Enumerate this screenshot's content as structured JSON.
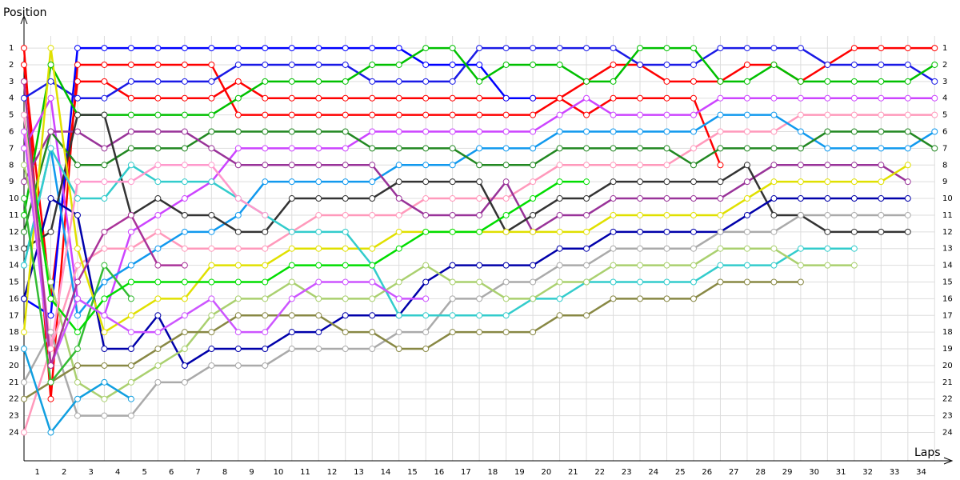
{
  "chart_data": {
    "type": "line",
    "y_label": "Position",
    "x_label": "Laps",
    "x": [
      0,
      1,
      2,
      3,
      4,
      5,
      6,
      7,
      8,
      9,
      10,
      11,
      12,
      13,
      14,
      15,
      16,
      17,
      18,
      19,
      20,
      21,
      22,
      23,
      24,
      25,
      26,
      27,
      28,
      29,
      30,
      31,
      32,
      33,
      34
    ],
    "xlim": [
      0,
      34.35
    ],
    "xticks": [
      1,
      2,
      3,
      4,
      5,
      6,
      7,
      8,
      9,
      10,
      11,
      12,
      13,
      14,
      15,
      16,
      17,
      18,
      19,
      20,
      21,
      22,
      23,
      24,
      25,
      26,
      27,
      28,
      29,
      30,
      31,
      32,
      33,
      34
    ],
    "ylim": [
      25.7,
      -0.2
    ],
    "yticks": [
      1,
      2,
      3,
      4,
      5,
      6,
      7,
      8,
      9,
      10,
      11,
      12,
      13,
      14,
      15,
      16,
      17,
      18,
      19,
      20,
      21,
      22,
      23,
      24
    ],
    "grid": true,
    "series": [
      {
        "color": "#ff0000",
        "values": [
          2,
          16,
          3,
          3,
          4,
          4,
          4,
          4,
          3,
          4,
          4,
          4,
          4,
          4,
          4,
          4,
          4,
          4,
          4,
          4,
          4,
          3,
          2,
          2,
          3,
          3,
          3,
          2,
          2,
          3,
          2,
          1,
          1,
          1,
          1
        ]
      },
      {
        "color": "#ff0000",
        "values": [
          1,
          22,
          2,
          2,
          2,
          2,
          2,
          2,
          5,
          5,
          5,
          5,
          5,
          5,
          5,
          5,
          5,
          5,
          5,
          5,
          4,
          5,
          4,
          4,
          4,
          4,
          8,
          null,
          null,
          null,
          null,
          null,
          null,
          null,
          null
        ]
      },
      {
        "color": "#0000ff",
        "values": [
          16,
          17,
          1,
          1,
          1,
          1,
          1,
          1,
          1,
          1,
          1,
          1,
          1,
          1,
          1,
          2,
          2,
          2,
          4,
          4,
          null,
          null,
          null,
          null,
          null,
          null,
          null,
          null,
          null,
          null,
          null,
          null,
          null,
          null,
          null
        ]
      },
      {
        "color": "#1a1ae6",
        "values": [
          4,
          3,
          4,
          4,
          3,
          3,
          3,
          3,
          2,
          2,
          2,
          2,
          2,
          3,
          3,
          3,
          3,
          1,
          1,
          1,
          1,
          1,
          1,
          2,
          2,
          2,
          1,
          1,
          1,
          1,
          2,
          2,
          2,
          2,
          3
        ]
      },
      {
        "color": "#00c000",
        "values": [
          11,
          2,
          5,
          5,
          5,
          5,
          5,
          5,
          4,
          3,
          3,
          3,
          3,
          2,
          2,
          1,
          1,
          3,
          2,
          2,
          2,
          3,
          3,
          1,
          1,
          1,
          3,
          3,
          2,
          3,
          3,
          3,
          3,
          3,
          2
        ]
      },
      {
        "color": "#cc44ff",
        "values": [
          7,
          4,
          16,
          17,
          12,
          11,
          10,
          9,
          7,
          7,
          7,
          7,
          7,
          6,
          6,
          6,
          6,
          6,
          6,
          6,
          5,
          4,
          5,
          5,
          5,
          5,
          4,
          4,
          4,
          4,
          4,
          4,
          4,
          4,
          4
        ]
      },
      {
        "color": "#ff99bb",
        "values": [
          24,
          19,
          14,
          13,
          13,
          12,
          13,
          13,
          13,
          13,
          12,
          11,
          11,
          11,
          11,
          10,
          10,
          10,
          10,
          9,
          8,
          8,
          8,
          8,
          8,
          7,
          6,
          6,
          6,
          5,
          5,
          5,
          5,
          5,
          5
        ]
      },
      {
        "color": "#1199ee",
        "values": [
          14,
          7,
          17,
          15,
          14,
          13,
          12,
          12,
          11,
          9,
          9,
          9,
          9,
          9,
          8,
          8,
          8,
          7,
          7,
          7,
          6,
          6,
          6,
          6,
          6,
          6,
          5,
          5,
          5,
          6,
          7,
          7,
          7,
          7,
          6
        ]
      },
      {
        "color": "#228822",
        "values": [
          12,
          6,
          8,
          8,
          7,
          7,
          7,
          6,
          6,
          6,
          6,
          6,
          6,
          7,
          7,
          7,
          7,
          8,
          8,
          8,
          7,
          7,
          7,
          7,
          7,
          8,
          7,
          7,
          7,
          7,
          6,
          6,
          6,
          6,
          7
        ]
      },
      {
        "color": "#993399",
        "values": [
          9,
          6,
          6,
          7,
          6,
          6,
          6,
          7,
          8,
          8,
          8,
          8,
          8,
          8,
          10,
          11,
          11,
          11,
          9,
          12,
          11,
          11,
          10,
          10,
          10,
          10,
          10,
          9,
          8,
          8,
          8,
          8,
          8,
          9,
          null
        ]
      },
      {
        "color": "#333333",
        "values": [
          13,
          12,
          5,
          5,
          11,
          10,
          11,
          11,
          12,
          12,
          10,
          10,
          10,
          10,
          9,
          9,
          9,
          9,
          12,
          11,
          10,
          10,
          9,
          9,
          9,
          9,
          9,
          8,
          11,
          11,
          12,
          12,
          12,
          12,
          null
        ]
      },
      {
        "color": "#0000aa",
        "values": [
          16,
          10,
          11,
          19,
          19,
          17,
          20,
          19,
          19,
          19,
          18,
          18,
          17,
          17,
          17,
          15,
          14,
          14,
          14,
          14,
          13,
          13,
          12,
          12,
          12,
          12,
          12,
          11,
          10,
          10,
          10,
          10,
          10,
          10,
          null
        ]
      },
      {
        "color": "#e0e000",
        "values": [
          18,
          1,
          13,
          18,
          17,
          16,
          16,
          14,
          14,
          14,
          13,
          13,
          13,
          13,
          12,
          12,
          12,
          12,
          12,
          12,
          12,
          12,
          11,
          11,
          11,
          11,
          11,
          10,
          9,
          9,
          9,
          9,
          9,
          8,
          null
        ]
      },
      {
        "color": "#aaaaaa",
        "values": [
          21,
          18,
          23,
          23,
          23,
          21,
          21,
          20,
          20,
          20,
          19,
          19,
          19,
          19,
          18,
          18,
          16,
          16,
          15,
          15,
          14,
          14,
          13,
          13,
          13,
          13,
          12,
          12,
          12,
          11,
          11,
          11,
          11,
          11,
          null
        ]
      },
      {
        "color": "#33cccc",
        "values": [
          14,
          7,
          10,
          10,
          8,
          9,
          9,
          9,
          10,
          11,
          12,
          12,
          12,
          14,
          17,
          17,
          17,
          17,
          17,
          16,
          16,
          15,
          15,
          15,
          15,
          15,
          14,
          14,
          14,
          13,
          13,
          13,
          null,
          null,
          null
        ]
      },
      {
        "color": "#aad06f",
        "values": [
          8,
          15,
          21,
          22,
          21,
          20,
          19,
          17,
          16,
          16,
          15,
          16,
          16,
          16,
          15,
          14,
          15,
          15,
          16,
          16,
          15,
          15,
          14,
          14,
          14,
          14,
          13,
          13,
          13,
          14,
          14,
          14,
          null,
          null,
          null
        ]
      },
      {
        "color": "#888844",
        "values": [
          22,
          21,
          20,
          20,
          20,
          19,
          18,
          18,
          17,
          17,
          17,
          17,
          18,
          18,
          19,
          19,
          18,
          18,
          18,
          18,
          17,
          17,
          16,
          16,
          16,
          16,
          15,
          15,
          15,
          15,
          null,
          null,
          null,
          null,
          null
        ]
      },
      {
        "color": "#119fe0",
        "values": [
          19,
          24,
          22,
          21,
          22,
          null,
          null,
          null,
          null,
          null,
          null,
          null,
          null,
          null,
          null,
          null,
          null,
          null,
          null,
          null,
          null,
          null,
          null,
          null,
          null,
          null,
          null,
          null,
          null,
          null,
          null,
          null,
          null,
          null,
          null
        ]
      },
      {
        "color": "#33bb33",
        "values": [
          10,
          21,
          19,
          14,
          16,
          null,
          null,
          null,
          null,
          null,
          null,
          null,
          null,
          null,
          null,
          null,
          null,
          null,
          null,
          null,
          null,
          null,
          null,
          null,
          null,
          null,
          null,
          null,
          null,
          null,
          null,
          null,
          null,
          null,
          null
        ]
      },
      {
        "color": "#00dd00",
        "values": [
          5,
          16,
          18,
          16,
          15,
          15,
          15,
          15,
          15,
          15,
          14,
          14,
          14,
          14,
          13,
          12,
          12,
          12,
          11,
          10,
          9,
          9,
          null,
          null,
          null,
          null,
          null,
          null,
          null,
          null,
          null,
          null,
          null,
          null,
          null
        ]
      },
      {
        "color": "#cc55ff",
        "values": [
          6,
          20,
          16,
          17,
          18,
          18,
          17,
          16,
          18,
          18,
          16,
          15,
          15,
          15,
          16,
          16,
          null,
          null,
          null,
          null,
          null,
          null,
          null,
          null,
          null,
          null,
          null,
          null,
          null,
          null,
          null,
          null,
          null,
          null,
          null
        ]
      },
      {
        "color": "#ff99cc",
        "values": [
          5,
          19,
          9,
          9,
          9,
          8,
          8,
          8,
          10,
          11,
          null,
          null,
          null,
          null,
          null,
          null,
          null,
          null,
          null,
          null,
          null,
          null,
          null,
          null,
          null,
          null,
          null,
          null,
          null,
          null,
          null,
          null,
          null,
          null,
          null
        ]
      },
      {
        "color": "#aa3399",
        "values": [
          3,
          20,
          15,
          12,
          11,
          14,
          14,
          null,
          null,
          null,
          null,
          null,
          null,
          null,
          null,
          null,
          null,
          null,
          null,
          null,
          null,
          null,
          null,
          null,
          null,
          null,
          null,
          null,
          null,
          null,
          null,
          null,
          null,
          null,
          null
        ]
      }
    ]
  }
}
